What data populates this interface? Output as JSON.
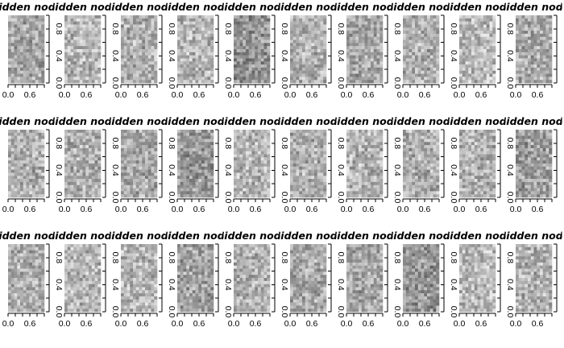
{
  "chart_data": {
    "type": "heatmap",
    "layout": {
      "rows": 3,
      "cols": 10
    },
    "colormap": "grayscale",
    "panel_title": "Hidden node",
    "xlim": [
      0,
      1
    ],
    "ylim": [
      0,
      1
    ],
    "x_ticks": [
      0.0,
      0.2,
      0.4,
      0.6,
      0.8,
      1.0
    ],
    "x_tick_labels": [
      "0.0",
      "0.6"
    ],
    "y_ticks": [
      0.0,
      0.2,
      0.4,
      0.6,
      0.8,
      1.0
    ],
    "y_tick_labels": [
      "0.0",
      "0.4",
      "0.8"
    ],
    "grid_cols": 12,
    "grid_rows": 22,
    "panel_mean_gray": [
      [
        0.66,
        0.71,
        0.69,
        0.72,
        0.58,
        0.7,
        0.66,
        0.68,
        0.73,
        0.67
      ],
      [
        0.7,
        0.68,
        0.67,
        0.6,
        0.72,
        0.69,
        0.71,
        0.68,
        0.7,
        0.62
      ],
      [
        0.69,
        0.72,
        0.71,
        0.64,
        0.7,
        0.67,
        0.66,
        0.58,
        0.73,
        0.7
      ]
    ]
  }
}
